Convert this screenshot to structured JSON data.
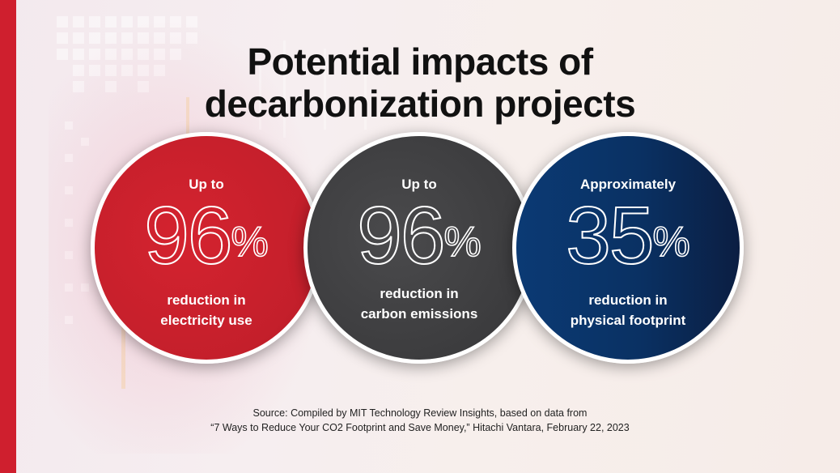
{
  "title": {
    "line1": "Potential impacts of",
    "line2": "decarbonization projects"
  },
  "stats": [
    {
      "prefix": "Up to",
      "number": "96",
      "unit": "%",
      "line1": "reduction in",
      "line2": "electricity use"
    },
    {
      "prefix": "Up to",
      "number": "96",
      "unit": "%",
      "line1": "reduction in",
      "line2": "carbon emissions"
    },
    {
      "prefix": "Approximately",
      "number": "35",
      "unit": "%",
      "line1": "reduction in",
      "line2": "physical footprint"
    }
  ],
  "source": {
    "line1": "Source: Compiled by MIT Technology Review Insights, based on data from",
    "line2": "“7 Ways to Reduce Your CO2 Footprint and Save Money,” Hitachi Vantara, February 22, 2023"
  },
  "colors": {
    "accent_red": "#cf1f2e",
    "circle_gray": "#3c3c3e",
    "circle_navy": "#0a3163"
  }
}
